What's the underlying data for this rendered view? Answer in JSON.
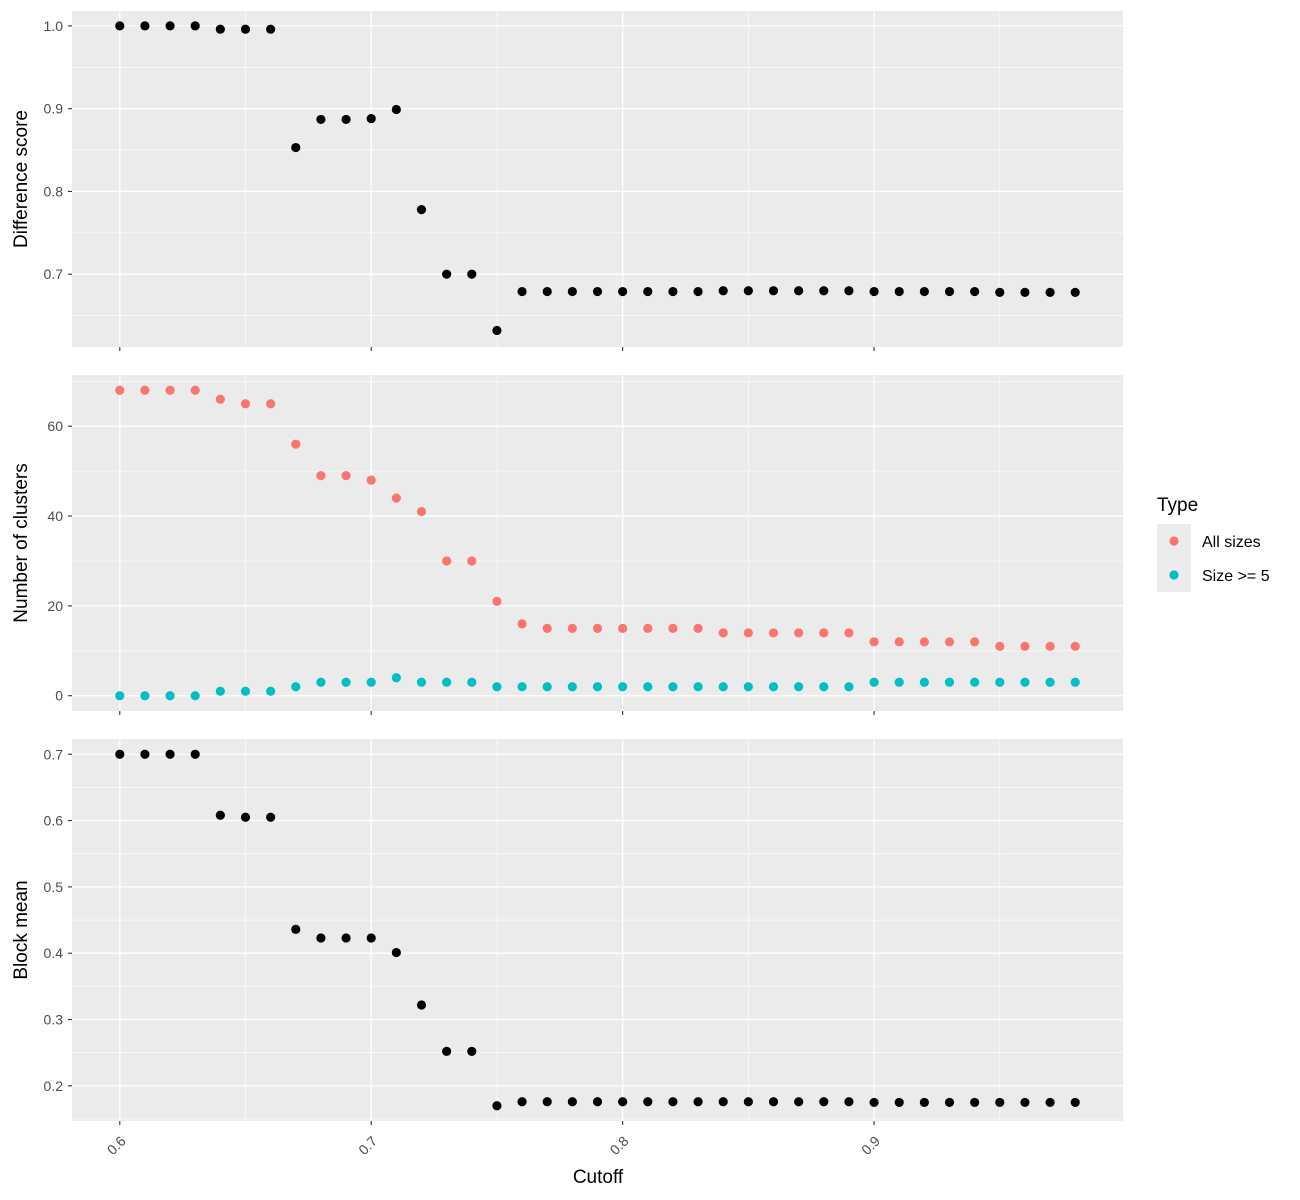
{
  "chart_data": {
    "type": "scatter",
    "colors": {
      "panel_bg": "#ebebeb",
      "grid": "#ffffff",
      "tick": "#333333",
      "points_black": "#000000",
      "all_sizes": "#f8766d",
      "size_ge_5": "#00bfc4"
    },
    "x": [
      0.6,
      0.61,
      0.62,
      0.63,
      0.64,
      0.65,
      0.66,
      0.67,
      0.68,
      0.69,
      0.7,
      0.71,
      0.72,
      0.73,
      0.74,
      0.75,
      0.76,
      0.77,
      0.78,
      0.79,
      0.8,
      0.81,
      0.82,
      0.83,
      0.84,
      0.85,
      0.86,
      0.87,
      0.88,
      0.89,
      0.9,
      0.91,
      0.92,
      0.93,
      0.94,
      0.95,
      0.96,
      0.97,
      0.98
    ],
    "xlabel": "Cutoff",
    "xticks": [
      0.6,
      0.7,
      0.8,
      0.9
    ],
    "xtick_labels": [
      "0.6",
      "0.7",
      "0.8",
      "0.9"
    ],
    "xlim": [
      0.581,
      0.999
    ],
    "panels": [
      {
        "ylabel": "Difference score",
        "ylim": [
          0.612,
          1.018
        ],
        "yticks": [
          0.7,
          0.8,
          0.9,
          1.0
        ],
        "ytick_labels": [
          "0.7",
          "0.8",
          "0.9",
          "1.0"
        ],
        "series": [
          {
            "color": "#000000",
            "values": [
              1.0,
              1.0,
              1.0,
              1.0,
              0.996,
              0.996,
              0.996,
              0.853,
              0.887,
              0.887,
              0.888,
              0.899,
              0.778,
              0.7,
              0.7,
              0.632,
              0.679,
              0.679,
              0.679,
              0.679,
              0.679,
              0.679,
              0.679,
              0.679,
              0.68,
              0.68,
              0.68,
              0.68,
              0.68,
              0.68,
              0.679,
              0.679,
              0.679,
              0.679,
              0.679,
              0.678,
              0.678,
              0.678,
              0.678
            ]
          }
        ]
      },
      {
        "ylabel": "Number of clusters",
        "ylim": [
          -3.4,
          71.4
        ],
        "yticks": [
          0,
          20,
          40,
          60
        ],
        "ytick_labels": [
          "0",
          "20",
          "40",
          "60"
        ],
        "series": [
          {
            "name": "All sizes",
            "color": "#f8766d",
            "values": [
              68,
              68,
              68,
              68,
              66,
              65,
              65,
              56,
              49,
              49,
              48,
              44,
              41,
              30,
              30,
              21,
              16,
              15,
              15,
              15,
              15,
              15,
              15,
              15,
              14,
              14,
              14,
              14,
              14,
              14,
              12,
              12,
              12,
              12,
              12,
              11,
              11,
              11,
              11
            ]
          },
          {
            "name": "Size >= 5",
            "color": "#00bfc4",
            "values": [
              0,
              0,
              0,
              0,
              1,
              1,
              1,
              2,
              3,
              3,
              3,
              4,
              3,
              3,
              3,
              2,
              2,
              2,
              2,
              2,
              2,
              2,
              2,
              2,
              2,
              2,
              2,
              2,
              2,
              2,
              3,
              3,
              3,
              3,
              3,
              3,
              3,
              3,
              3
            ]
          }
        ]
      },
      {
        "ylabel": "Block mean",
        "ylim": [
          0.147,
          0.723
        ],
        "yticks": [
          0.2,
          0.3,
          0.4,
          0.5,
          0.6,
          0.7
        ],
        "ytick_labels": [
          "0.2",
          "0.3",
          "0.4",
          "0.5",
          "0.6",
          "0.7"
        ],
        "series": [
          {
            "color": "#000000",
            "values": [
              0.7,
              0.7,
              0.7,
              0.7,
              0.608,
              0.605,
              0.605,
              0.436,
              0.423,
              0.423,
              0.423,
              0.401,
              0.322,
              0.252,
              0.252,
              0.17,
              0.176,
              0.176,
              0.176,
              0.176,
              0.176,
              0.176,
              0.176,
              0.176,
              0.176,
              0.176,
              0.176,
              0.176,
              0.176,
              0.176,
              0.175,
              0.175,
              0.175,
              0.175,
              0.175,
              0.175,
              0.175,
              0.175,
              0.175
            ]
          }
        ]
      }
    ],
    "legend": {
      "title": "Type",
      "placement": "right",
      "entries": [
        "All sizes",
        "Size >= 5"
      ],
      "colors": [
        "#f8766d",
        "#00bfc4"
      ]
    }
  }
}
